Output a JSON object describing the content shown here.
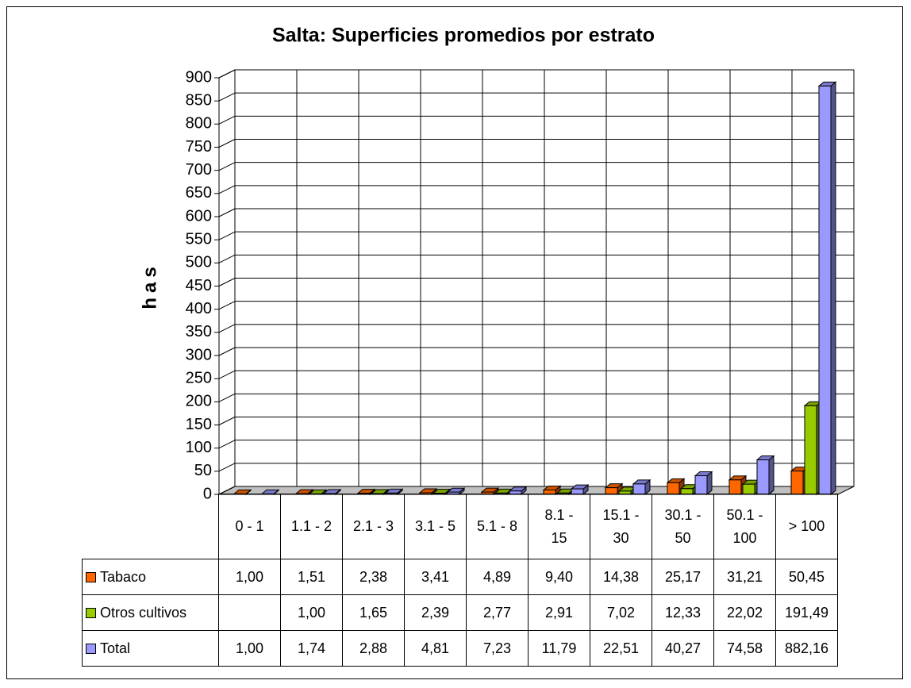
{
  "chart_data": {
    "type": "bar3d",
    "title": "Salta: Superficies promedios por estrato",
    "y_label": "has",
    "categories": [
      "0 - 1",
      "1.1 - 2",
      "2.1 - 3",
      "3.1 - 5",
      "5.1 - 8",
      "8.1 - 15",
      "15.1 - 30",
      "30.1 - 50",
      "50.1 - 100",
      "> 100"
    ],
    "series": [
      {
        "name": "Tabaco",
        "color": "#ff6600",
        "values": [
          1.0,
          1.51,
          2.38,
          3.41,
          4.89,
          9.4,
          14.38,
          25.17,
          31.21,
          50.45
        ],
        "value_labels": [
          "1,00",
          "1,51",
          "2,38",
          "3,41",
          "4,89",
          "9,40",
          "14,38",
          "25,17",
          "31,21",
          "50,45"
        ]
      },
      {
        "name": "Otros cultivos",
        "color": "#99cc00",
        "values": [
          null,
          1.0,
          1.65,
          2.39,
          2.77,
          2.91,
          7.02,
          12.33,
          22.02,
          191.49
        ],
        "value_labels": [
          null,
          "1,00",
          "1,65",
          "2,39",
          "2,77",
          "2,91",
          "7,02",
          "12,33",
          "22,02",
          "191,49"
        ]
      },
      {
        "name": "Total",
        "color": "#9999ff",
        "values": [
          1.0,
          1.74,
          2.88,
          4.81,
          7.23,
          11.79,
          22.51,
          40.27,
          74.58,
          882.16
        ],
        "value_labels": [
          "1,00",
          "1,74",
          "2,88",
          "4,81",
          "7,23",
          "11,79",
          "22,51",
          "40,27",
          "74,58",
          "882,16"
        ]
      }
    ],
    "ylim": [
      0,
      900
    ],
    "yticks": [
      0,
      50,
      100,
      150,
      200,
      250,
      300,
      350,
      400,
      450,
      500,
      550,
      600,
      650,
      700,
      750,
      800,
      850,
      900
    ],
    "grid": true
  }
}
